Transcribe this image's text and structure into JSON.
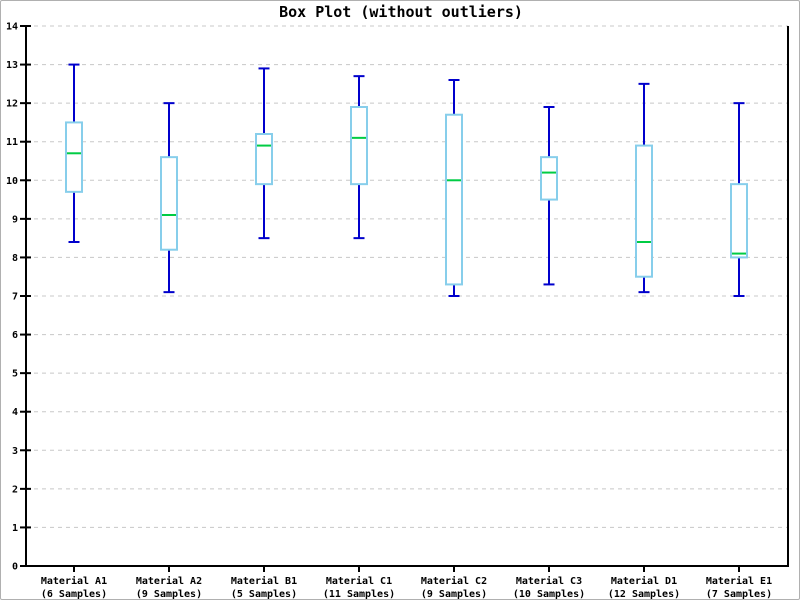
{
  "chart_data": {
    "type": "boxplot",
    "title": "Box Plot (without outliers)",
    "xlabel": "",
    "ylabel": "",
    "ylim": [
      0,
      14
    ],
    "ytick_step": 1,
    "yticks": [
      0,
      1,
      2,
      3,
      4,
      5,
      6,
      7,
      8,
      9,
      10,
      11,
      12,
      13,
      14
    ],
    "grid": "horizontal-dashed",
    "legend": "none",
    "categories": [
      {
        "label": "Material A1",
        "sublabel": "(6 Samples)",
        "samples": 6,
        "low": 8.4,
        "q1": 9.7,
        "median": 10.7,
        "q3": 11.5,
        "high": 13.0
      },
      {
        "label": "Material A2",
        "sublabel": "(9 Samples)",
        "samples": 9,
        "low": 7.1,
        "q1": 8.2,
        "median": 9.1,
        "q3": 10.6,
        "high": 12.0
      },
      {
        "label": "Material B1",
        "sublabel": "(5 Samples)",
        "samples": 5,
        "low": 8.5,
        "q1": 9.9,
        "median": 10.9,
        "q3": 11.2,
        "high": 12.9
      },
      {
        "label": "Material C1",
        "sublabel": "(11 Samples)",
        "samples": 11,
        "low": 8.5,
        "q1": 9.9,
        "median": 11.1,
        "q3": 11.9,
        "high": 12.7
      },
      {
        "label": "Material C2",
        "sublabel": "(9 Samples)",
        "samples": 9,
        "low": 7.0,
        "q1": 7.3,
        "median": 10.0,
        "q3": 11.7,
        "high": 12.6
      },
      {
        "label": "Material C3",
        "sublabel": "(10 Samples)",
        "samples": 10,
        "low": 7.3,
        "q1": 9.5,
        "median": 10.2,
        "q3": 10.6,
        "high": 11.9
      },
      {
        "label": "Material D1",
        "sublabel": "(12 Samples)",
        "samples": 12,
        "low": 7.1,
        "q1": 7.5,
        "median": 8.4,
        "q3": 10.9,
        "high": 12.5
      },
      {
        "label": "Material E1",
        "sublabel": "(7 Samples)",
        "samples": 7,
        "low": 7.0,
        "q1": 8.0,
        "median": 8.1,
        "q3": 9.9,
        "high": 12.0
      }
    ],
    "colors": {
      "whisker": "#0000cc",
      "box_border": "#87ceeb",
      "box_fill": "#ffffff",
      "median": "#00cc44",
      "grid": "#c8c8c8",
      "axis": "#000000",
      "text": "#000000",
      "background": "#ffffff"
    }
  }
}
